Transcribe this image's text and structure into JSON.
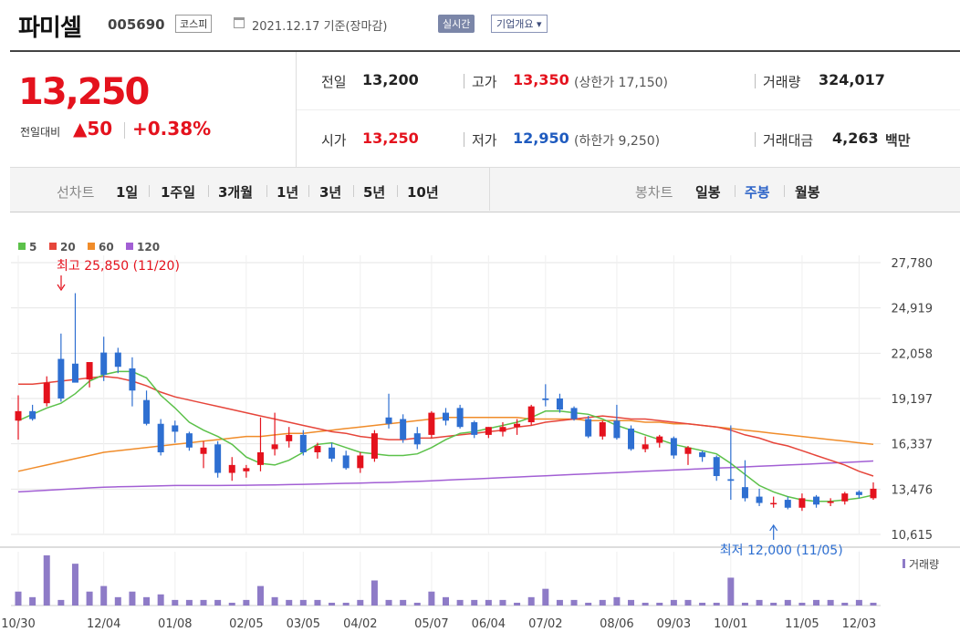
{
  "header": {
    "name": "파미셀",
    "code": "005690",
    "market": "코스피",
    "date_text": "2021.12.17 기준(장마감)",
    "realtime_label": "실시간",
    "company_button": "기업개요 ▾"
  },
  "price": {
    "current": "13,250",
    "change_label": "전일대비",
    "change_value": "▲50",
    "change_percent": "+0.38%",
    "prev_close_label": "전일",
    "prev_close": "13,200",
    "high_label": "고가",
    "high": "13,350",
    "upper_limit": "(상한가 17,150)",
    "volume_label": "거래량",
    "volume": "324,017",
    "open_label": "시가",
    "open": "13,250",
    "low_label": "저가",
    "low": "12,950",
    "lower_limit": "(하한가 9,250)",
    "amount_label": "거래대금",
    "amount": "4,263",
    "amount_unit": "백만"
  },
  "periods": {
    "line_label": "선차트",
    "line_items": [
      "1일",
      "1주일",
      "3개월",
      "1년",
      "3년",
      "5년",
      "10년"
    ],
    "candle_label": "봉차트",
    "candle_items": [
      "일봉",
      "주봉",
      "월봉"
    ],
    "selected_candle": "주봉"
  },
  "colors": {
    "up": "#e4121d",
    "down": "#2e6fd1",
    "ma5": "#5cc14a",
    "ma20": "#e6453a",
    "ma60": "#f08c2a",
    "ma120": "#a25fd4",
    "volume": "#8e7bc7"
  },
  "chart_data": {
    "type": "candlestick",
    "legend": [
      {
        "label": "5",
        "color": "#5cc14a"
      },
      {
        "label": "20",
        "color": "#e6453a"
      },
      {
        "label": "60",
        "color": "#f08c2a"
      },
      {
        "label": "120",
        "color": "#a25fd4"
      }
    ],
    "y_ticks": [
      "27,780",
      "24,919",
      "22,058",
      "19,197",
      "16,337",
      "13,476",
      "10,615"
    ],
    "ylim": [
      10615,
      27780
    ],
    "x_ticks": [
      "10/30",
      "12/04",
      "01/08",
      "02/05",
      "03/05",
      "04/02",
      "05/07",
      "06/04",
      "07/02",
      "08/06",
      "09/03",
      "10/01",
      "11/05",
      "12/03"
    ],
    "x_tick_index": [
      0,
      6,
      11,
      16,
      20,
      24,
      29,
      33,
      37,
      42,
      46,
      50,
      55,
      59
    ],
    "candles": [
      {
        "o": 17800,
        "h": 19400,
        "l": 16600,
        "c": 18400
      },
      {
        "o": 18400,
        "h": 18800,
        "l": 17800,
        "c": 17900
      },
      {
        "o": 18900,
        "h": 20600,
        "l": 18700,
        "c": 20200
      },
      {
        "o": 21700,
        "h": 23300,
        "l": 19000,
        "c": 19200
      },
      {
        "o": 21400,
        "h": 25850,
        "l": 20300,
        "c": 20200
      },
      {
        "o": 20400,
        "h": 21400,
        "l": 19900,
        "c": 21500
      },
      {
        "o": 22100,
        "h": 23100,
        "l": 20300,
        "c": 20700
      },
      {
        "o": 22100,
        "h": 22400,
        "l": 20800,
        "c": 21200
      },
      {
        "o": 21100,
        "h": 21800,
        "l": 18700,
        "c": 19700
      },
      {
        "o": 19100,
        "h": 19700,
        "l": 17500,
        "c": 17600
      },
      {
        "o": 17600,
        "h": 17900,
        "l": 15600,
        "c": 15800
      },
      {
        "o": 17500,
        "h": 17800,
        "l": 16400,
        "c": 17100
      },
      {
        "o": 17000,
        "h": 17100,
        "l": 15900,
        "c": 16100
      },
      {
        "o": 15700,
        "h": 16500,
        "l": 14800,
        "c": 16100
      },
      {
        "o": 16300,
        "h": 16500,
        "l": 14200,
        "c": 14500
      },
      {
        "o": 14500,
        "h": 15500,
        "l": 14000,
        "c": 15000
      },
      {
        "o": 14600,
        "h": 15000,
        "l": 14200,
        "c": 14800
      },
      {
        "o": 15000,
        "h": 18000,
        "l": 14600,
        "c": 15800
      },
      {
        "o": 16000,
        "h": 18300,
        "l": 15600,
        "c": 16300
      },
      {
        "o": 16500,
        "h": 17400,
        "l": 16100,
        "c": 16900
      },
      {
        "o": 16900,
        "h": 17200,
        "l": 15600,
        "c": 15800
      },
      {
        "o": 15800,
        "h": 16400,
        "l": 15400,
        "c": 16200
      },
      {
        "o": 16100,
        "h": 16400,
        "l": 15200,
        "c": 15400
      },
      {
        "o": 15600,
        "h": 15900,
        "l": 14700,
        "c": 14800
      },
      {
        "o": 14800,
        "h": 15800,
        "l": 14500,
        "c": 15600
      },
      {
        "o": 15400,
        "h": 17200,
        "l": 15200,
        "c": 17000
      },
      {
        "o": 18000,
        "h": 19500,
        "l": 17300,
        "c": 17600
      },
      {
        "o": 17900,
        "h": 18200,
        "l": 16400,
        "c": 16600
      },
      {
        "o": 17000,
        "h": 17400,
        "l": 16000,
        "c": 16300
      },
      {
        "o": 16900,
        "h": 18400,
        "l": 16700,
        "c": 18300
      },
      {
        "o": 18300,
        "h": 18600,
        "l": 17500,
        "c": 17800
      },
      {
        "o": 18600,
        "h": 18800,
        "l": 17300,
        "c": 17400
      },
      {
        "o": 17700,
        "h": 17800,
        "l": 16700,
        "c": 16900
      },
      {
        "o": 16900,
        "h": 17400,
        "l": 16700,
        "c": 17400
      },
      {
        "o": 17100,
        "h": 17700,
        "l": 16800,
        "c": 17400
      },
      {
        "o": 17400,
        "h": 17900,
        "l": 16900,
        "c": 17600
      },
      {
        "o": 17700,
        "h": 18800,
        "l": 17500,
        "c": 18700
      },
      {
        "o": 19200,
        "h": 20100,
        "l": 18700,
        "c": 19100
      },
      {
        "o": 19200,
        "h": 19500,
        "l": 18300,
        "c": 18500
      },
      {
        "o": 18600,
        "h": 18700,
        "l": 17800,
        "c": 17900
      },
      {
        "o": 17900,
        "h": 18100,
        "l": 16700,
        "c": 16800
      },
      {
        "o": 16800,
        "h": 17800,
        "l": 16600,
        "c": 17700
      },
      {
        "o": 17800,
        "h": 18800,
        "l": 16600,
        "c": 16700
      },
      {
        "o": 17300,
        "h": 17500,
        "l": 15900,
        "c": 16000
      },
      {
        "o": 16000,
        "h": 16800,
        "l": 15800,
        "c": 16300
      },
      {
        "o": 16400,
        "h": 16900,
        "l": 16100,
        "c": 16800
      },
      {
        "o": 16700,
        "h": 16800,
        "l": 15400,
        "c": 15600
      },
      {
        "o": 15700,
        "h": 16200,
        "l": 15000,
        "c": 16100
      },
      {
        "o": 15800,
        "h": 15900,
        "l": 15200,
        "c": 15500
      },
      {
        "o": 15500,
        "h": 15600,
        "l": 14000,
        "c": 14300
      },
      {
        "o": 14100,
        "h": 17500,
        "l": 12800,
        "c": 14000
      },
      {
        "o": 13600,
        "h": 15300,
        "l": 12700,
        "c": 12900
      },
      {
        "o": 13000,
        "h": 13500,
        "l": 12400,
        "c": 12600
      },
      {
        "o": 12600,
        "h": 13000,
        "l": 12300,
        "c": 12600
      },
      {
        "o": 12800,
        "h": 13000,
        "l": 12200,
        "c": 12300
      },
      {
        "o": 12300,
        "h": 13200,
        "l": 12100,
        "c": 12900
      },
      {
        "o": 13000,
        "h": 13100,
        "l": 12300,
        "c": 12500
      },
      {
        "o": 12600,
        "h": 12900,
        "l": 12400,
        "c": 12700
      },
      {
        "o": 12700,
        "h": 13300,
        "l": 12500,
        "c": 13200
      },
      {
        "o": 13300,
        "h": 13400,
        "l": 12900,
        "c": 13100
      },
      {
        "o": 12900,
        "h": 13900,
        "l": 12800,
        "c": 13500
      }
    ],
    "volume": [
      5,
      3,
      18,
      2,
      15,
      5,
      7,
      3,
      5,
      3,
      4,
      2,
      2,
      2,
      2,
      1,
      2,
      7,
      3,
      2,
      2,
      2,
      1,
      1,
      2,
      9,
      2,
      2,
      1,
      5,
      3,
      2,
      2,
      2,
      2,
      1,
      3,
      6,
      2,
      2,
      1,
      2,
      3,
      2,
      1,
      1,
      2,
      2,
      1,
      1,
      10,
      1,
      2,
      1,
      2,
      1,
      2,
      2,
      1,
      2,
      1
    ],
    "ma5": [
      17800,
      18200,
      18600,
      18900,
      19500,
      20300,
      20700,
      20900,
      20900,
      20500,
      19400,
      18600,
      17700,
      17200,
      16800,
      16300,
      15500,
      15100,
      15000,
      15300,
      15800,
      16300,
      16400,
      16100,
      15800,
      15700,
      15600,
      15600,
      15700,
      16100,
      16600,
      17000,
      17100,
      17300,
      17500,
      17700,
      18000,
      18400,
      18400,
      18300,
      18200,
      17900,
      17500,
      17200,
      16900,
      16600,
      16300,
      16100,
      15900,
      15700,
      15100,
      14400,
      13700,
      13300,
      13000,
      12800,
      12700,
      12700,
      12800,
      12900,
      13100
    ],
    "ma20": [
      20100,
      20100,
      20200,
      20300,
      20400,
      20500,
      20600,
      20500,
      20300,
      20000,
      19600,
      19300,
      19100,
      18900,
      18700,
      18500,
      18300,
      18100,
      17900,
      17700,
      17500,
      17300,
      17100,
      17000,
      16800,
      16700,
      16600,
      16600,
      16700,
      16700,
      16800,
      16900,
      17000,
      17100,
      17200,
      17400,
      17500,
      17700,
      17800,
      17900,
      18000,
      18100,
      18000,
      17900,
      17900,
      17800,
      17700,
      17600,
      17500,
      17400,
      17200,
      16900,
      16700,
      16400,
      16200,
      15900,
      15600,
      15300,
      15000,
      14600,
      14300
    ],
    "ma60": [
      14600,
      14800,
      15000,
      15200,
      15400,
      15600,
      15800,
      15900,
      16000,
      16100,
      16200,
      16300,
      16400,
      16500,
      16600,
      16700,
      16800,
      16800,
      16900,
      17000,
      17000,
      17100,
      17200,
      17300,
      17400,
      17500,
      17600,
      17700,
      17800,
      17900,
      18000,
      18000,
      18000,
      18000,
      18000,
      18000,
      17900,
      17900,
      17900,
      17900,
      17800,
      17800,
      17800,
      17800,
      17700,
      17700,
      17600,
      17600,
      17500,
      17400,
      17300,
      17200,
      17100,
      17000,
      16900,
      16800,
      16700,
      16600,
      16500,
      16400,
      16300
    ],
    "ma120": [
      13300,
      13350,
      13400,
      13450,
      13500,
      13550,
      13600,
      13620,
      13640,
      13660,
      13680,
      13700,
      13700,
      13700,
      13700,
      13710,
      13720,
      13730,
      13740,
      13760,
      13780,
      13800,
      13820,
      13840,
      13860,
      13880,
      13900,
      13930,
      13960,
      14000,
      14040,
      14080,
      14120,
      14160,
      14200,
      14240,
      14280,
      14320,
      14360,
      14400,
      14440,
      14480,
      14520,
      14560,
      14600,
      14640,
      14680,
      14720,
      14760,
      14800,
      14840,
      14880,
      14920,
      14960,
      15000,
      15040,
      15080,
      15120,
      15160,
      15200,
      15250
    ],
    "annotations": [
      {
        "text": "최고 25,850 (11/20)",
        "index": 4,
        "value": 25850,
        "kind": "high"
      },
      {
        "text": "최저 12,000 (11/05)",
        "index": 53,
        "value": 12000,
        "kind": "low"
      }
    ],
    "volume_label": "거래량"
  }
}
